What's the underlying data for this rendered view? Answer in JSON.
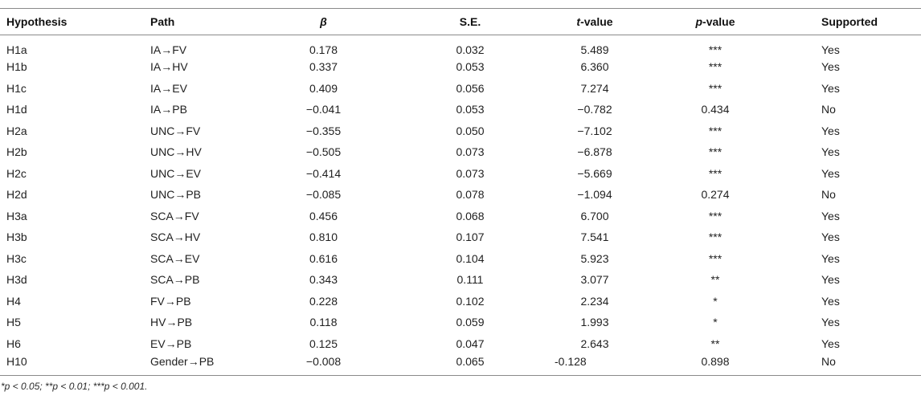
{
  "colors": {
    "background": "#ffffff",
    "text": "#1f1f1f",
    "rule_line": "#8a8a8a"
  },
  "table": {
    "columns": [
      {
        "key": "hypothesis",
        "label": "Hypothesis",
        "italic": false,
        "suffix": ""
      },
      {
        "key": "path",
        "label": "Path",
        "italic": false,
        "suffix": ""
      },
      {
        "key": "beta",
        "label": "β",
        "italic": true,
        "suffix": ""
      },
      {
        "key": "se",
        "label": "S.E.",
        "italic": false,
        "suffix": ""
      },
      {
        "key": "t",
        "label": "t",
        "italic": true,
        "suffix": "-value"
      },
      {
        "key": "p",
        "label": "p",
        "italic": true,
        "suffix": "-value"
      },
      {
        "key": "supported",
        "label": "Supported",
        "italic": false,
        "suffix": ""
      }
    ],
    "rows": [
      {
        "hypothesis": "H1a",
        "path": "IA→FV",
        "beta": "0.178",
        "se": "0.032",
        "t": "5.489",
        "p": "***",
        "supported": "Yes"
      },
      {
        "hypothesis": "H1b",
        "path": "IA→HV",
        "beta": "0.337",
        "se": "0.053",
        "t": "6.360",
        "p": "***",
        "supported": "Yes"
      },
      {
        "hypothesis": "H1c",
        "path": "IA→EV",
        "beta": "0.409",
        "se": "0.056",
        "t": "7.274",
        "p": "***",
        "supported": "Yes"
      },
      {
        "hypothesis": "H1d",
        "path": "IA→PB",
        "beta": "−0.041",
        "se": "0.053",
        "t": "−0.782",
        "p": "0.434",
        "supported": "No"
      },
      {
        "hypothesis": "H2a",
        "path": "UNC→FV",
        "beta": "−0.355",
        "se": "0.050",
        "t": "−7.102",
        "p": "***",
        "supported": "Yes"
      },
      {
        "hypothesis": "H2b",
        "path": "UNC→HV",
        "beta": "−0.505",
        "se": "0.073",
        "t": "−6.878",
        "p": "***",
        "supported": "Yes"
      },
      {
        "hypothesis": "H2c",
        "path": "UNC→EV",
        "beta": "−0.414",
        "se": "0.073",
        "t": "−5.669",
        "p": "***",
        "supported": "Yes"
      },
      {
        "hypothesis": "H2d",
        "path": "UNC→PB",
        "beta": "−0.085",
        "se": "0.078",
        "t": "−1.094",
        "p": "0.274",
        "supported": "No"
      },
      {
        "hypothesis": "H3a",
        "path": "SCA→FV",
        "beta": "0.456",
        "se": "0.068",
        "t": "6.700",
        "p": "***",
        "supported": "Yes"
      },
      {
        "hypothesis": "H3b",
        "path": "SCA→HV",
        "beta": "0.810",
        "se": "0.107",
        "t": "7.541",
        "p": "***",
        "supported": "Yes"
      },
      {
        "hypothesis": "H3c",
        "path": "SCA→EV",
        "beta": "0.616",
        "se": "0.104",
        "t": "5.923",
        "p": "***",
        "supported": "Yes"
      },
      {
        "hypothesis": "H3d",
        "path": "SCA→PB",
        "beta": "0.343",
        "se": "0.111",
        "t": "3.077",
        "p": "**",
        "supported": "Yes"
      },
      {
        "hypothesis": "H4",
        "path": "FV→PB",
        "beta": "0.228",
        "se": "0.102",
        "t": "2.234",
        "p": "*",
        "supported": "Yes"
      },
      {
        "hypothesis": "H5",
        "path": "HV→PB",
        "beta": "0.118",
        "se": "0.059",
        "t": "1.993",
        "p": "*",
        "supported": "Yes"
      },
      {
        "hypothesis": "H6",
        "path": "EV→PB",
        "beta": "0.125",
        "se": "0.047",
        "t": "2.643",
        "p": "**",
        "supported": "Yes"
      },
      {
        "hypothesis": "H10",
        "path": "Gender→PB",
        "beta": "−0.008",
        "se": "0.065",
        "t": "-0.128",
        "p": "0.898",
        "supported": "No"
      }
    ],
    "footnote": "*p < 0.05; **p < 0.01; ***p < 0.001."
  }
}
